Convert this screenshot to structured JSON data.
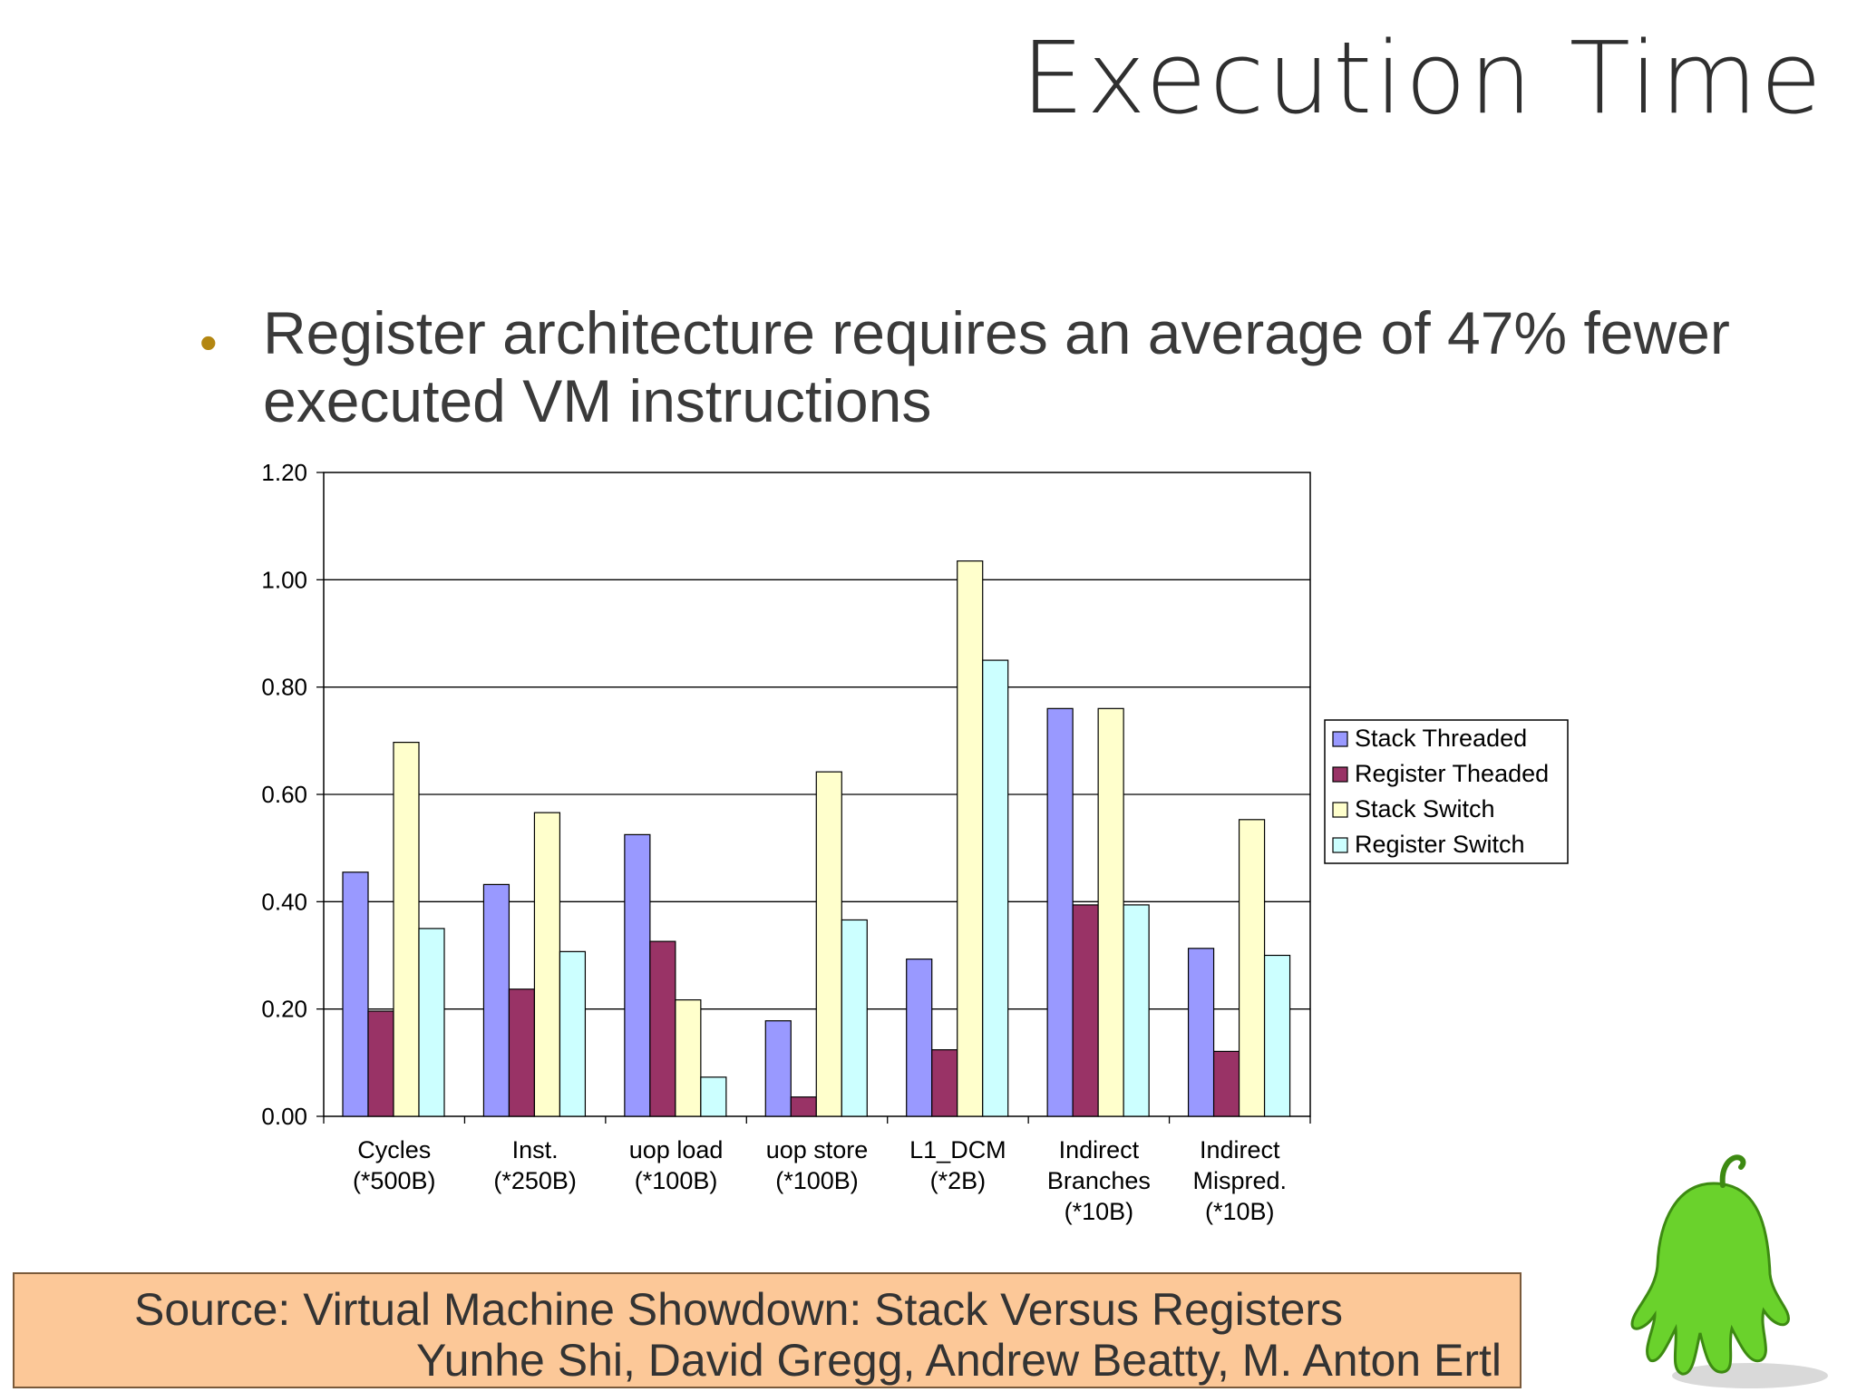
{
  "slide": {
    "title": "Execution Time",
    "bullet": "Register architecture requires an average of 47% fewer executed VM instructions",
    "source_line1": "Source: Virtual Machine Showdown: Stack Versus Registers",
    "source_line2": "Yunhe Shi, David Gregg, Andrew Beatty, M. Anton Ertl"
  },
  "chart_data": {
    "type": "bar",
    "title": "",
    "xlabel": "",
    "ylabel": "",
    "ylim": [
      0,
      1.2
    ],
    "yticks": [
      "0.00",
      "0.20",
      "0.40",
      "0.60",
      "0.80",
      "1.00",
      "1.20"
    ],
    "grid": true,
    "legend_position": "right",
    "categories": [
      [
        "Cycles",
        "(*500B)"
      ],
      [
        "Inst.",
        "(*250B)"
      ],
      [
        "uop load",
        "(*100B)"
      ],
      [
        "uop store",
        "(*100B)"
      ],
      [
        "L1_DCM",
        "(*2B)"
      ],
      [
        "Indirect",
        "Branches",
        "(*10B)"
      ],
      [
        "Indirect",
        "Mispred.",
        "(*10B)"
      ]
    ],
    "series": [
      {
        "name": "Stack Threaded",
        "color": "#9999ff",
        "values": [
          0.455,
          0.432,
          0.525,
          0.178,
          0.293,
          0.76,
          0.313
        ]
      },
      {
        "name": "Register Theaded",
        "color": "#993366",
        "values": [
          0.196,
          0.237,
          0.326,
          0.036,
          0.124,
          0.394,
          0.121
        ]
      },
      {
        "name": "Stack Switch",
        "color": "#ffffcc",
        "values": [
          0.697,
          0.566,
          0.217,
          0.642,
          1.035,
          0.76,
          0.553
        ]
      },
      {
        "name": "Register Switch",
        "color": "#ccffff",
        "values": [
          0.35,
          0.307,
          0.073,
          0.366,
          0.85,
          0.394,
          0.3
        ]
      }
    ]
  }
}
